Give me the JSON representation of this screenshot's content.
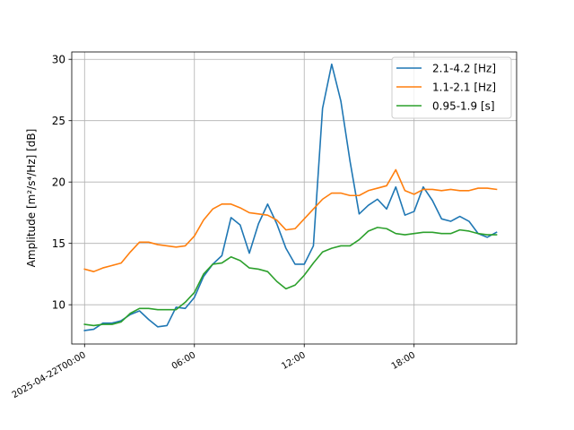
{
  "chart_data": {
    "type": "line",
    "ylabel": "Amplitude [m²/s⁴/Hz] [dB]",
    "ylim": [
      6.8,
      30.6
    ],
    "yticks": [
      10,
      15,
      20,
      25,
      30
    ],
    "xlim_hours": [
      -0.7,
      23.6
    ],
    "xticks": [
      {
        "hour": 0,
        "label": "2025-04-22T00:00"
      },
      {
        "hour": 6,
        "label": "06:00"
      },
      {
        "hour": 12,
        "label": "12:00"
      },
      {
        "hour": 18,
        "label": "18:00"
      }
    ],
    "grid": true,
    "legend_position": "top-right",
    "x_hours": [
      0,
      0.5,
      1,
      1.5,
      2,
      2.5,
      3,
      3.5,
      4,
      4.5,
      5,
      5.5,
      6,
      6.5,
      7,
      7.5,
      8,
      8.5,
      9,
      9.5,
      10,
      10.5,
      11,
      11.5,
      12,
      12.5,
      13,
      13.5,
      14,
      14.5,
      15,
      15.5,
      16,
      16.5,
      17,
      17.5,
      18,
      18.5,
      19,
      19.5,
      20,
      20.5,
      21,
      21.5,
      22,
      22.5
    ],
    "series": [
      {
        "name": "2.1-4.2 [Hz]",
        "color": "#1f77b4",
        "values": [
          7.9,
          8.0,
          8.5,
          8.5,
          8.7,
          9.2,
          9.5,
          8.8,
          8.2,
          8.3,
          9.8,
          9.7,
          10.6,
          12.3,
          13.3,
          14.0,
          17.1,
          16.5,
          14.2,
          16.6,
          18.2,
          16.6,
          14.6,
          13.3,
          13.3,
          14.8,
          26.0,
          29.6,
          26.6,
          21.7,
          17.4,
          18.1,
          18.6,
          17.8,
          19.6,
          17.3,
          17.6,
          19.6,
          18.5,
          17.0,
          16.8,
          17.2,
          16.8,
          15.8,
          15.5,
          15.9
        ]
      },
      {
        "name": "1.1-2.1 [Hz]",
        "color": "#ff7f0e",
        "values": [
          12.9,
          12.7,
          13.0,
          13.2,
          13.4,
          14.3,
          15.1,
          15.1,
          14.9,
          14.8,
          14.7,
          14.8,
          15.6,
          16.9,
          17.8,
          18.2,
          18.2,
          17.9,
          17.5,
          17.4,
          17.3,
          16.9,
          16.1,
          16.2,
          17.0,
          17.8,
          18.6,
          19.1,
          19.1,
          18.9,
          18.9,
          19.3,
          19.5,
          19.7,
          21.0,
          19.3,
          19.0,
          19.4,
          19.4,
          19.3,
          19.4,
          19.3,
          19.3,
          19.5,
          19.5,
          19.4
        ]
      },
      {
        "name": "0.95-1.9 [s]",
        "color": "#2ca02c",
        "values": [
          8.4,
          8.3,
          8.4,
          8.4,
          8.6,
          9.3,
          9.7,
          9.7,
          9.6,
          9.6,
          9.6,
          10.2,
          11.0,
          12.5,
          13.3,
          13.4,
          13.9,
          13.6,
          13.0,
          12.9,
          12.7,
          11.9,
          11.3,
          11.6,
          12.4,
          13.4,
          14.3,
          14.6,
          14.8,
          14.8,
          15.3,
          16.0,
          16.3,
          16.2,
          15.8,
          15.7,
          15.8,
          15.9,
          15.9,
          15.8,
          15.8,
          16.1,
          16.0,
          15.8,
          15.7,
          15.7
        ]
      }
    ]
  }
}
